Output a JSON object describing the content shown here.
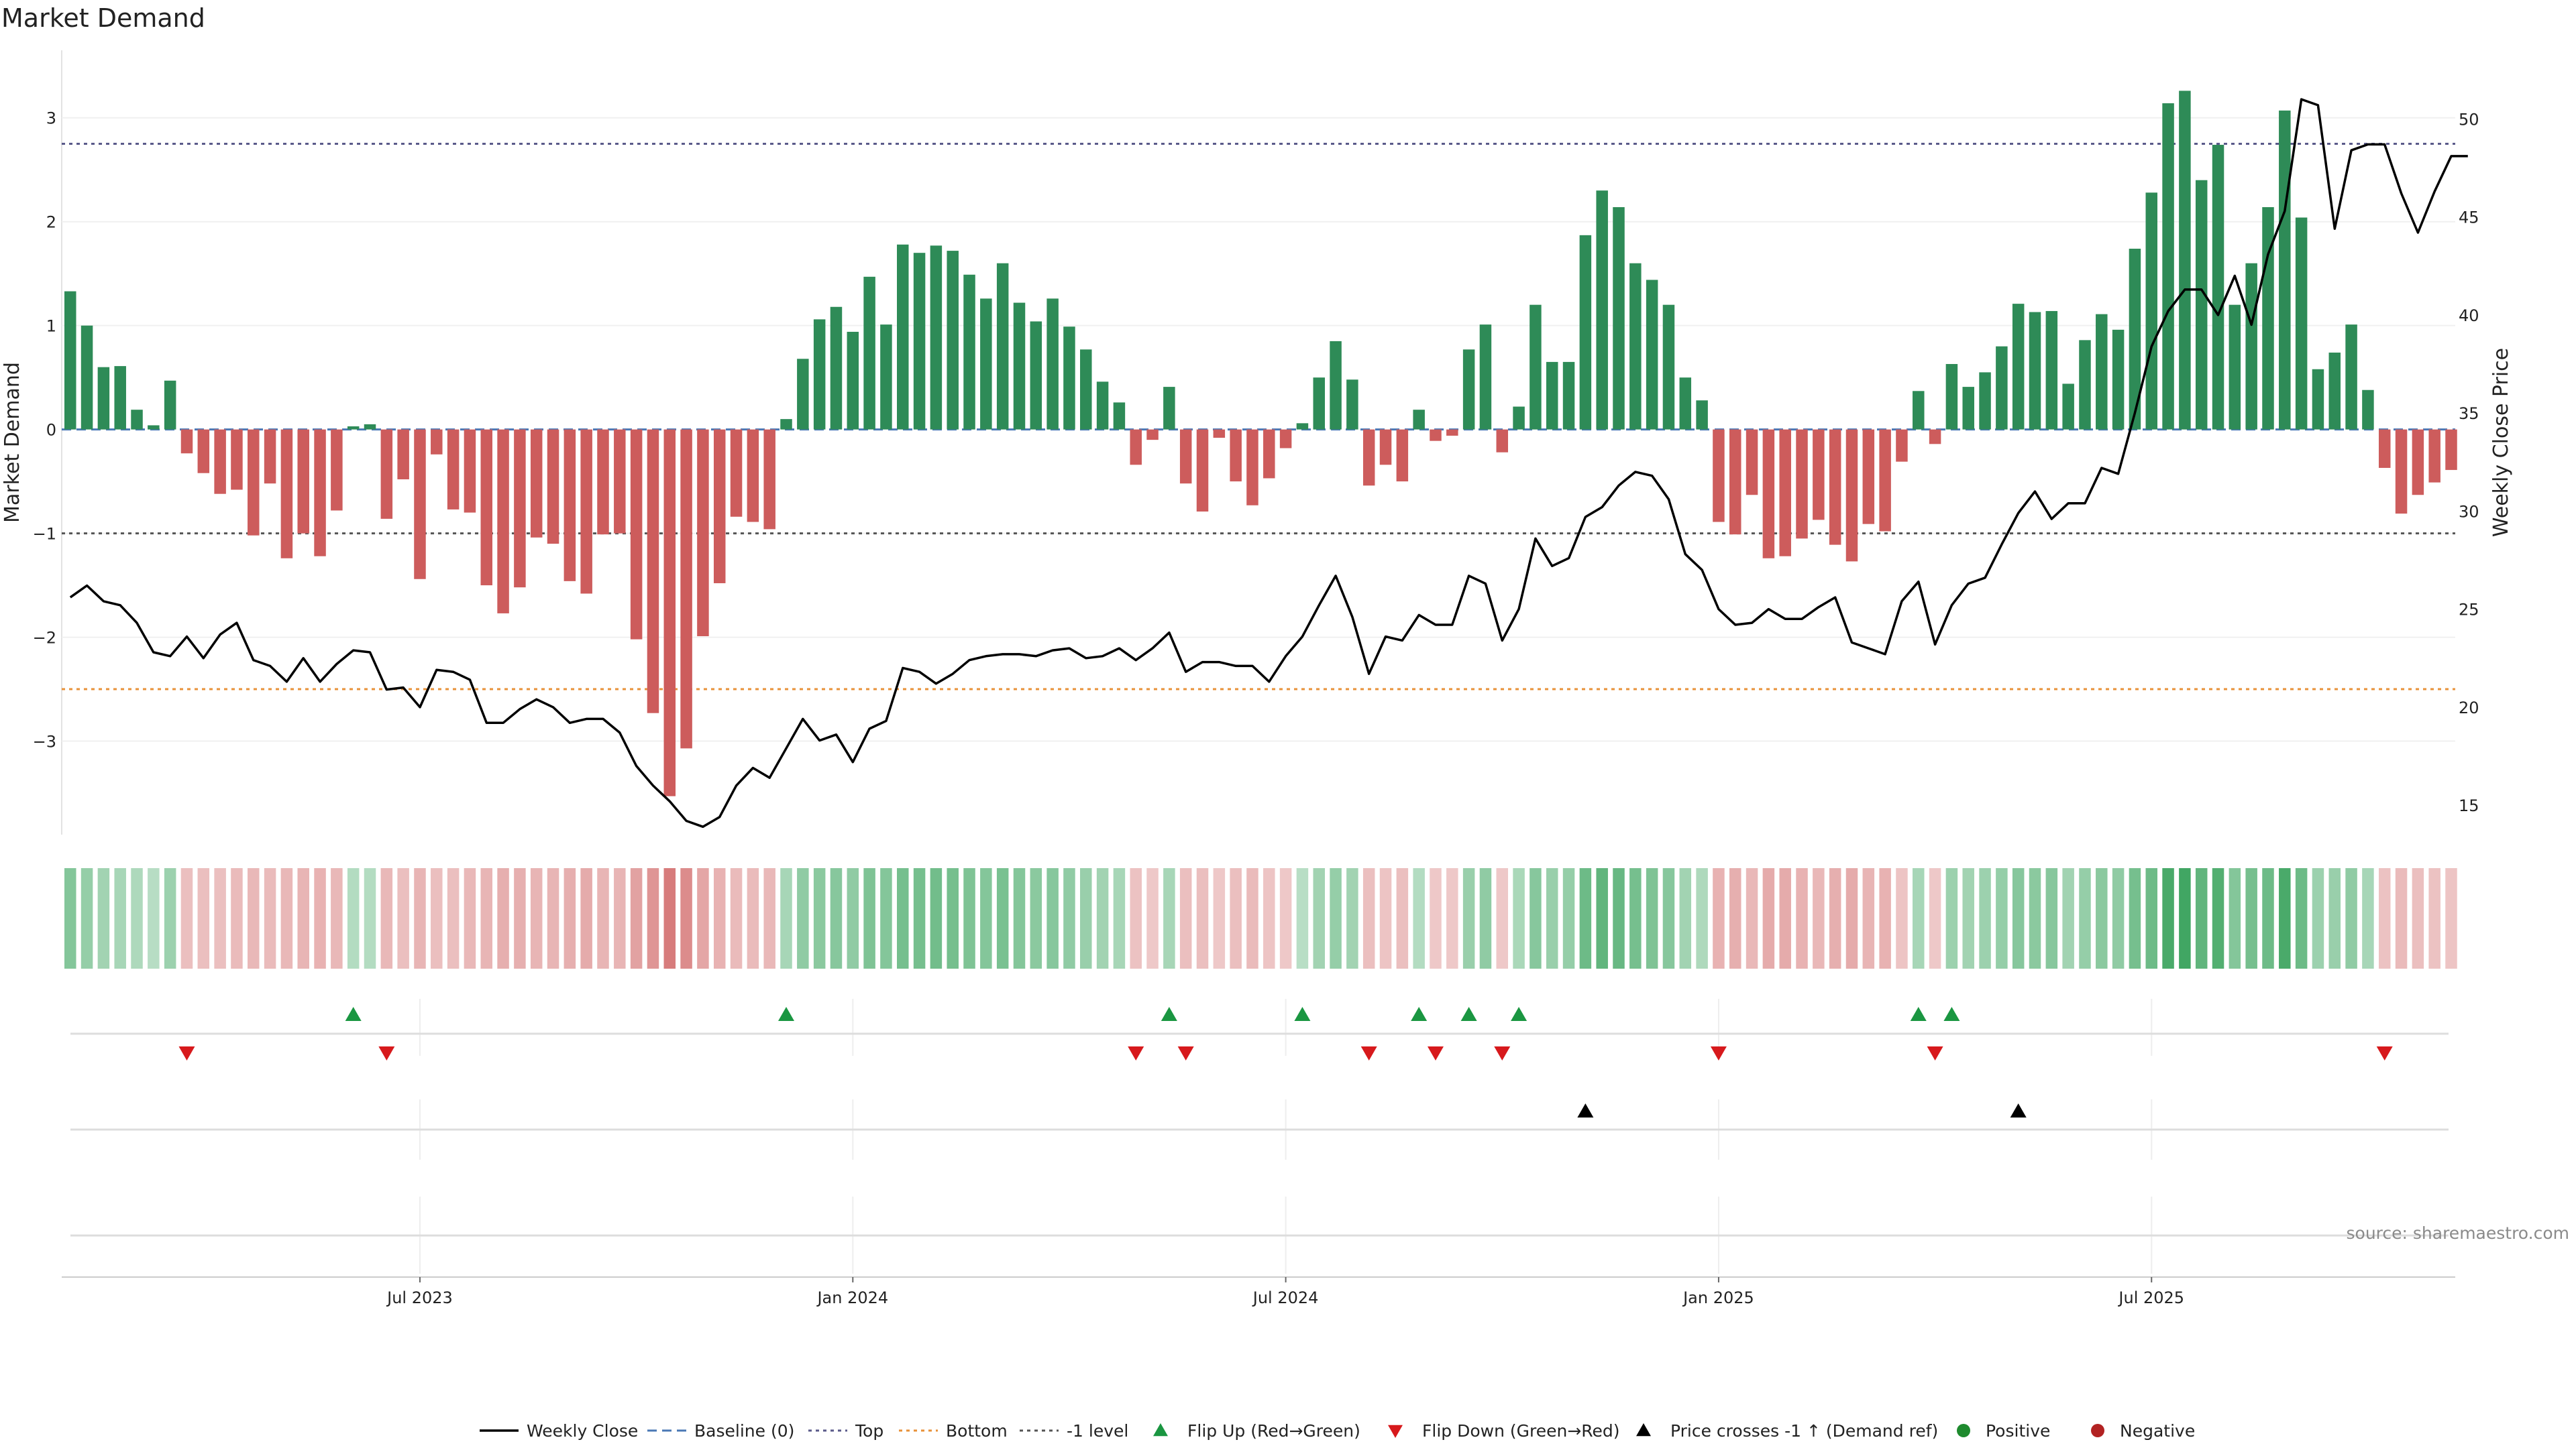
{
  "title": "Market Demand",
  "source": "source: sharemaestro.com",
  "colors": {
    "positive": "#2e8b57",
    "negative": "#cd5c5c",
    "price": "#000000",
    "top": "#5a5a8a",
    "bottom": "#e8923a",
    "neg1": "#555555",
    "flip_up": "#1a9641",
    "flip_down": "#d7191c",
    "cross": "#000000",
    "dot_pos": "#1e8a2e",
    "dot_neg": "#b22222"
  },
  "chart_data": {
    "type": "bar",
    "title": "Market Demand",
    "ylabel": "Market Demand",
    "y2label": "Weekly Close Price",
    "ylim": [
      -3.9,
      3.65
    ],
    "y2lim": [
      13.5,
      53.5
    ],
    "yticks": [
      {
        "value": 3,
        "label": "3"
      },
      {
        "value": 2,
        "label": "2"
      },
      {
        "value": 1,
        "label": "1"
      },
      {
        "value": 0,
        "label": "0"
      },
      {
        "value": -1,
        "label": "−1"
      },
      {
        "value": -2,
        "label": "−2"
      },
      {
        "value": -3,
        "label": "−3"
      }
    ],
    "y2ticks": [
      {
        "value": 50,
        "label": "50"
      },
      {
        "value": 45,
        "label": "45"
      },
      {
        "value": 40,
        "label": "40"
      },
      {
        "value": 35,
        "label": "35"
      },
      {
        "value": 30,
        "label": "30"
      },
      {
        "value": 25,
        "label": "25"
      },
      {
        "value": 20,
        "label": "20"
      },
      {
        "value": 15,
        "label": "15"
      }
    ],
    "xticks": [
      {
        "index": 21,
        "label": "Jul 2023"
      },
      {
        "index": 47,
        "label": "Jan 2024"
      },
      {
        "index": 73,
        "label": "Jul 2024"
      },
      {
        "index": 99,
        "label": "Jan 2025"
      },
      {
        "index": 125,
        "label": "Jul 2025"
      }
    ],
    "reference_lines": {
      "top": 2.75,
      "bottom": -2.5,
      "neg1": -1,
      "baseline": 0
    },
    "demand": [
      1.33,
      1.0,
      0.6,
      0.61,
      0.19,
      0.04,
      0.47,
      -0.23,
      -0.42,
      -0.62,
      -0.58,
      -1.02,
      -0.52,
      -1.24,
      -1.0,
      -1.22,
      -0.78,
      0.03,
      0.05,
      -0.86,
      -0.48,
      -1.44,
      -0.24,
      -0.77,
      -0.8,
      -1.5,
      -1.77,
      -1.52,
      -1.04,
      -1.1,
      -1.46,
      -1.58,
      -1.01,
      -1.0,
      -2.02,
      -2.73,
      -3.53,
      -3.07,
      -1.99,
      -1.48,
      -0.84,
      -0.89,
      -0.96,
      0.1,
      0.68,
      1.06,
      1.18,
      0.94,
      1.47,
      1.01,
      1.78,
      1.7,
      1.77,
      1.72,
      1.49,
      1.26,
      1.6,
      1.22,
      1.04,
      1.26,
      0.99,
      0.77,
      0.46,
      0.26,
      -0.34,
      -0.1,
      0.41,
      -0.52,
      -0.79,
      -0.08,
      -0.5,
      -0.73,
      -0.47,
      -0.18,
      0.06,
      0.5,
      0.85,
      0.48,
      -0.54,
      -0.34,
      -0.5,
      0.19,
      -0.11,
      -0.06,
      0.77,
      1.01,
      -0.22,
      0.22,
      1.2,
      0.65,
      0.65,
      1.87,
      2.3,
      2.14,
      1.6,
      1.44,
      1.2,
      0.5,
      0.28,
      -0.89,
      -1.01,
      -0.63,
      -1.24,
      -1.22,
      -1.05,
      -0.87,
      -1.11,
      -1.27,
      -0.91,
      -0.98,
      -0.31,
      0.37,
      -0.14,
      0.63,
      0.41,
      0.55,
      0.8,
      1.21,
      1.13,
      1.14,
      0.44,
      0.86,
      1.11,
      0.96,
      1.74,
      2.28,
      3.14,
      3.26,
      2.4,
      2.74,
      1.2,
      1.6,
      2.14,
      3.07,
      2.04,
      0.58,
      0.74,
      1.01,
      0.38,
      -0.37,
      -0.81,
      -0.63,
      -0.51,
      -0.39
    ],
    "price": [
      25.6,
      26.2,
      25.4,
      25.2,
      24.3,
      22.8,
      22.6,
      23.6,
      22.5,
      23.7,
      24.3,
      22.4,
      22.1,
      21.3,
      22.5,
      21.3,
      22.2,
      22.9,
      22.8,
      20.9,
      21.0,
      20.0,
      21.9,
      21.8,
      21.4,
      19.2,
      19.2,
      19.9,
      20.4,
      20.0,
      19.2,
      19.4,
      19.4,
      18.7,
      17.0,
      16.0,
      15.2,
      14.2,
      13.9,
      14.4,
      16.0,
      16.9,
      16.4,
      17.9,
      19.4,
      18.3,
      18.6,
      17.2,
      18.9,
      19.3,
      22.0,
      21.8,
      21.2,
      21.7,
      22.4,
      22.6,
      22.7,
      22.7,
      22.6,
      22.9,
      23.0,
      22.5,
      22.6,
      23.0,
      22.4,
      23.0,
      23.8,
      21.8,
      22.3,
      22.3,
      22.1,
      22.1,
      21.3,
      22.6,
      23.6,
      25.2,
      26.7,
      24.6,
      21.7,
      23.6,
      23.4,
      24.7,
      24.2,
      24.2,
      26.7,
      26.3,
      23.4,
      25.0,
      28.6,
      27.2,
      27.6,
      29.7,
      30.2,
      31.3,
      32.0,
      31.8,
      30.6,
      27.8,
      27.0,
      25.0,
      24.2,
      24.3,
      25.0,
      24.5,
      24.5,
      25.1,
      25.6,
      23.3,
      23.0,
      22.7,
      25.4,
      26.4,
      23.2,
      25.2,
      26.3,
      26.6,
      28.3,
      29.9,
      31.0,
      29.6,
      30.4,
      30.4,
      32.2,
      31.9,
      35.0,
      38.4,
      40.2,
      41.3,
      41.3,
      40.0,
      42.0,
      39.5,
      43.1,
      45.3,
      51.0,
      50.7,
      44.4,
      48.4,
      48.7,
      48.7,
      46.2,
      44.2,
      46.3,
      48.1,
      48.1
    ],
    "heat": [
      0.42,
      0.32,
      0.25,
      0.22,
      0.18,
      0.13,
      0.28,
      -0.22,
      -0.22,
      -0.22,
      -0.25,
      -0.28,
      -0.25,
      -0.28,
      -0.3,
      -0.32,
      -0.28,
      0.15,
      0.15,
      -0.28,
      -0.22,
      -0.3,
      -0.22,
      -0.22,
      -0.28,
      -0.3,
      -0.35,
      -0.35,
      -0.3,
      -0.3,
      -0.35,
      -0.38,
      -0.3,
      -0.3,
      -0.45,
      -0.55,
      -0.75,
      -0.62,
      -0.42,
      -0.32,
      -0.25,
      -0.25,
      -0.28,
      0.22,
      0.35,
      0.38,
      0.4,
      0.35,
      0.45,
      0.42,
      0.5,
      0.5,
      0.52,
      0.5,
      0.45,
      0.42,
      0.48,
      0.42,
      0.38,
      0.4,
      0.35,
      0.3,
      0.25,
      0.22,
      -0.2,
      -0.15,
      0.22,
      -0.22,
      -0.22,
      -0.15,
      -0.22,
      -0.25,
      -0.18,
      -0.15,
      0.12,
      0.25,
      0.32,
      0.25,
      -0.22,
      -0.18,
      -0.22,
      0.15,
      -0.15,
      -0.15,
      0.3,
      0.35,
      -0.15,
      0.2,
      0.4,
      0.3,
      0.32,
      0.55,
      0.62,
      0.58,
      0.5,
      0.45,
      0.4,
      0.25,
      0.18,
      -0.32,
      -0.35,
      -0.28,
      -0.38,
      -0.38,
      -0.32,
      -0.28,
      -0.35,
      -0.38,
      -0.3,
      -0.32,
      -0.18,
      0.22,
      -0.15,
      0.28,
      0.25,
      0.28,
      0.32,
      0.4,
      0.38,
      0.4,
      0.25,
      0.32,
      0.38,
      0.35,
      0.5,
      0.55,
      0.75,
      0.8,
      0.62,
      0.7,
      0.42,
      0.5,
      0.55,
      0.75,
      0.55,
      0.28,
      0.3,
      0.35,
      0.22,
      -0.2,
      -0.25,
      -0.22,
      -0.2,
      -0.18
    ],
    "flip_up": [
      17,
      43,
      66,
      74,
      81,
      84,
      87,
      111,
      113
    ],
    "flip_down": [
      7,
      19,
      64,
      67,
      78,
      82,
      86,
      99,
      112,
      139
    ],
    "cross_up": [
      91,
      117
    ],
    "legend": [
      {
        "key": "price",
        "label": "Weekly Close"
      },
      {
        "key": "baseline",
        "label": "Baseline (0)"
      },
      {
        "key": "top",
        "label": "Top"
      },
      {
        "key": "bottom",
        "label": "Bottom"
      },
      {
        "key": "neg1",
        "label": "-1 level"
      },
      {
        "key": "flip_up",
        "label": "Flip Up (Red→Green)"
      },
      {
        "key": "flip_down",
        "label": "Flip Down (Green→Red)"
      },
      {
        "key": "cross",
        "label": "Price crosses -1 ↑ (Demand ref)"
      },
      {
        "key": "dot_pos",
        "label": "Positive"
      },
      {
        "key": "dot_neg",
        "label": "Negative"
      }
    ]
  }
}
